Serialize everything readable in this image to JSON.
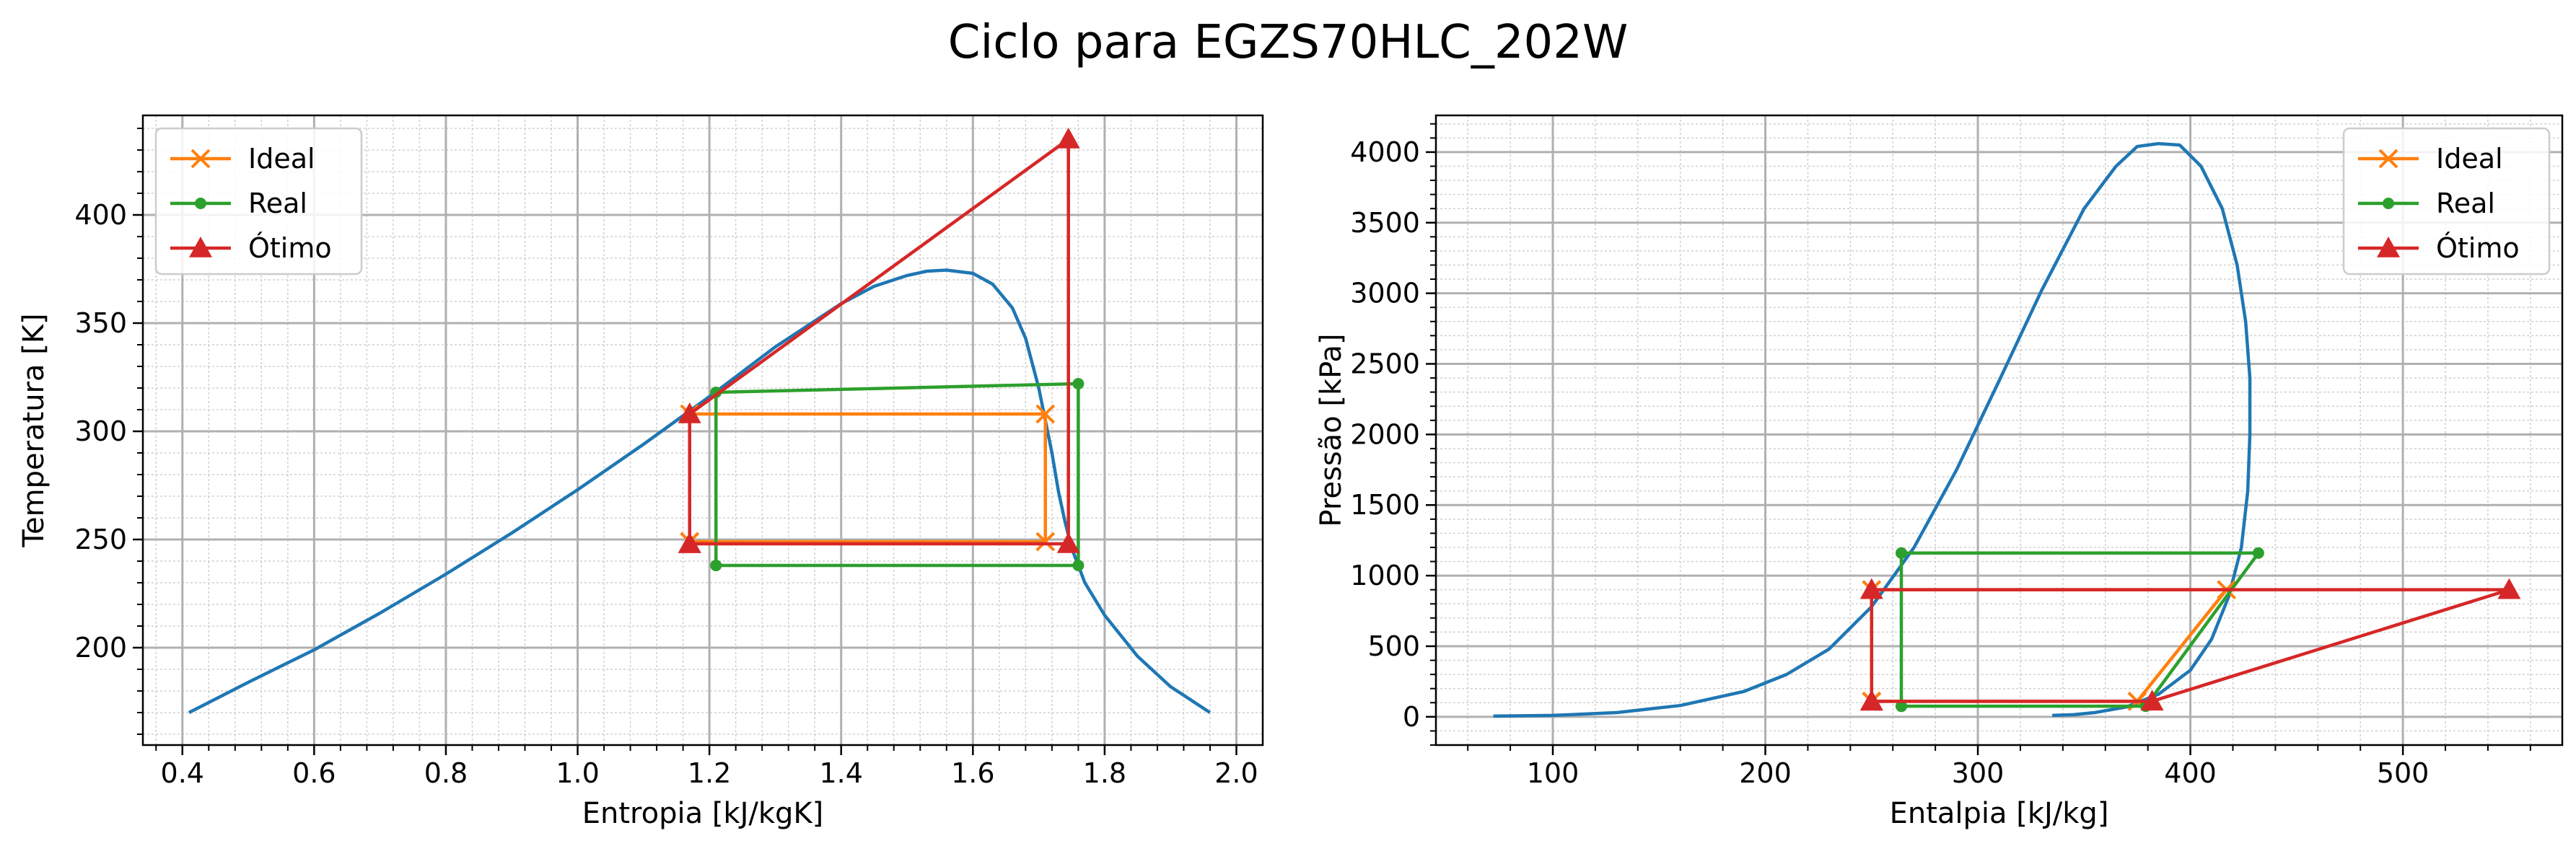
{
  "figure_title": "Ciclo para EGZS70HLC_202W",
  "colors": {
    "dome": "#1f77b4",
    "ideal": "#ff7f0e",
    "real": "#2ca02c",
    "otimo": "#d62728",
    "grid_major": "#b0b0b0",
    "grid_minor": "#d0d0d0"
  },
  "chart_data": [
    {
      "type": "line",
      "title": "",
      "xlabel": "Entropia [kJ/kgK]",
      "ylabel": "Temperatura [K]",
      "xlim": [
        0.34,
        2.04
      ],
      "ylim": [
        155,
        446
      ],
      "xticks": [
        0.4,
        0.6,
        0.8,
        1.0,
        1.2,
        1.4,
        1.6,
        1.8,
        2.0
      ],
      "xtick_labels": [
        "0.4",
        "0.6",
        "0.8",
        "1.0",
        "1.2",
        "1.4",
        "1.6",
        "1.8",
        "2.0"
      ],
      "yticks": [
        200,
        250,
        300,
        350,
        400
      ],
      "ytick_labels": [
        "200",
        "250",
        "300",
        "350",
        "400"
      ],
      "grid": true,
      "minor_grid": true,
      "legend_position": "top-left",
      "dome": {
        "x": [
          0.41,
          0.5,
          0.6,
          0.7,
          0.8,
          0.9,
          1.0,
          1.1,
          1.2,
          1.3,
          1.4,
          1.45,
          1.5,
          1.53,
          1.56,
          1.6,
          1.63,
          1.66,
          1.68,
          1.7,
          1.72,
          1.73,
          1.74,
          1.75,
          1.77,
          1.8,
          1.85,
          1.9,
          1.96
        ],
        "y": [
          170,
          184,
          199,
          216,
          234,
          253,
          273,
          294,
          316,
          339,
          359,
          367,
          372,
          374,
          374.5,
          373,
          368,
          357,
          343,
          320,
          290,
          272,
          258,
          246,
          230,
          215,
          196,
          182,
          170
        ]
      },
      "series": [
        {
          "name": "Ideal",
          "marker": "x",
          "x": [
            1.17,
            1.71,
            1.71,
            1.17,
            1.17
          ],
          "y": [
            249,
            249,
            308,
            308,
            249
          ]
        },
        {
          "name": "Real",
          "marker": "dot",
          "x": [
            1.21,
            1.76,
            1.76,
            1.21,
            1.21
          ],
          "y": [
            238,
            238,
            322,
            318,
            238
          ]
        },
        {
          "name": "Ótimo",
          "marker": "triangle",
          "x": [
            1.17,
            1.745,
            1.745,
            1.17,
            1.17
          ],
          "y": [
            248,
            248,
            435,
            308,
            248
          ]
        }
      ]
    },
    {
      "type": "line",
      "title": "",
      "xlabel": "Entalpia [kJ/kg]",
      "ylabel": "Pressão [kPa]",
      "xlim": [
        45,
        575
      ],
      "ylim": [
        -200,
        4260
      ],
      "xticks": [
        100,
        200,
        300,
        400,
        500
      ],
      "xtick_labels": [
        "100",
        "200",
        "300",
        "400",
        "500"
      ],
      "yticks": [
        0,
        500,
        1000,
        1500,
        2000,
        2500,
        3000,
        3500,
        4000
      ],
      "ytick_labels": [
        "0",
        "500",
        "1000",
        "1500",
        "2000",
        "2500",
        "3000",
        "3500",
        "4000"
      ],
      "grid": true,
      "minor_grid": true,
      "legend_position": "top-right",
      "dome": {
        "x": [
          72,
          100,
          130,
          160,
          190,
          210,
          230,
          250,
          270,
          290,
          310,
          330,
          350,
          365,
          375,
          385,
          395,
          405,
          415,
          422,
          426,
          428,
          428,
          427,
          424,
          418,
          410,
          400,
          385,
          370,
          355,
          345,
          335
        ],
        "y": [
          5,
          10,
          30,
          80,
          180,
          300,
          480,
          780,
          1200,
          1750,
          2380,
          3020,
          3600,
          3900,
          4040,
          4060,
          4050,
          3900,
          3600,
          3200,
          2800,
          2400,
          2000,
          1600,
          1200,
          850,
          550,
          330,
          160,
          70,
          30,
          15,
          10
        ]
      },
      "series": [
        {
          "name": "Ideal",
          "marker": "x",
          "x": [
            250,
            375,
            417,
            250,
            250
          ],
          "y": [
            110,
            110,
            900,
            900,
            110
          ]
        },
        {
          "name": "Real",
          "marker": "dot",
          "x": [
            264,
            379,
            432,
            264,
            264
          ],
          "y": [
            75,
            75,
            1160,
            1160,
            75
          ]
        },
        {
          "name": "Ótimo",
          "marker": "triangle",
          "x": [
            250,
            382,
            550,
            250,
            250
          ],
          "y": [
            110,
            110,
            900,
            900,
            110
          ]
        }
      ]
    }
  ]
}
